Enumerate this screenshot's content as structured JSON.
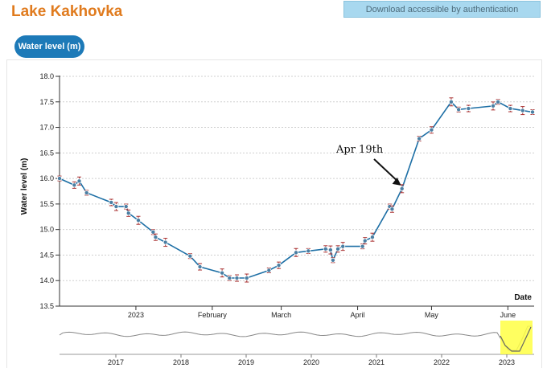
{
  "page": {
    "title": "Lake Kakhovka",
    "download_label": "Download accessible by authentication",
    "tab_label": "Water level (m)"
  },
  "colors": {
    "title": "#e07b1e",
    "line": "#1d6fa5",
    "point": "#4b7fa3",
    "error_bar": "#a33",
    "brush": "#ffff44"
  },
  "chart_data": {
    "type": "line",
    "ylabel": "Water level (m)",
    "xlabel": "Date",
    "ylim": [
      13.5,
      18.0
    ],
    "yticks": [
      13.5,
      14.0,
      14.5,
      15.0,
      15.5,
      16.0,
      16.5,
      17.0,
      17.5,
      18.0
    ],
    "xticks": [
      "2023",
      "February",
      "March",
      "April",
      "May",
      "June"
    ],
    "grid": "horizontal dashed",
    "annotation": {
      "text": "Apr 19th",
      "x": "2023-04-19",
      "y": 15.8
    },
    "series": [
      {
        "values": [
          [
            "2022-12-01",
            16.0
          ],
          [
            "2022-12-07",
            15.87
          ],
          [
            "2022-12-09",
            15.95
          ],
          [
            "2022-12-12",
            15.72
          ],
          [
            "2022-12-22",
            15.53
          ],
          [
            "2022-12-24",
            15.45
          ],
          [
            "2022-12-28",
            15.45
          ],
          [
            "2022-12-29",
            15.32
          ],
          [
            "2023-01-02",
            15.18
          ],
          [
            "2023-01-08",
            14.95
          ],
          [
            "2023-01-09",
            14.85
          ],
          [
            "2023-01-13",
            14.75
          ],
          [
            "2023-01-23",
            14.48
          ],
          [
            "2023-01-27",
            14.27
          ],
          [
            "2023-02-05",
            14.15
          ],
          [
            "2023-02-08",
            14.05
          ],
          [
            "2023-02-11",
            14.05
          ],
          [
            "2023-02-15",
            14.05
          ],
          [
            "2023-02-24",
            14.2
          ],
          [
            "2023-02-28",
            14.3
          ],
          [
            "2023-03-07",
            14.55
          ],
          [
            "2023-03-12",
            14.58
          ],
          [
            "2023-03-19",
            14.62
          ],
          [
            "2023-03-21",
            14.6
          ],
          [
            "2023-03-22",
            14.4
          ],
          [
            "2023-03-24",
            14.62
          ],
          [
            "2023-03-26",
            14.67
          ],
          [
            "2023-04-03",
            14.67
          ],
          [
            "2023-04-04",
            14.78
          ],
          [
            "2023-04-07",
            14.85
          ],
          [
            "2023-04-14",
            15.45
          ],
          [
            "2023-04-15",
            15.4
          ],
          [
            "2023-04-19",
            15.8
          ],
          [
            "2023-04-26",
            16.78
          ],
          [
            "2023-05-01",
            16.95
          ],
          [
            "2023-05-09",
            17.5
          ],
          [
            "2023-05-12",
            17.35
          ],
          [
            "2023-05-16",
            17.37
          ],
          [
            "2023-05-26",
            17.42
          ],
          [
            "2023-05-28",
            17.5
          ],
          [
            "2023-06-02",
            17.37
          ],
          [
            "2023-06-07",
            17.33
          ],
          [
            "2023-06-11",
            17.3
          ]
        ]
      }
    ],
    "navigator": {
      "ticks": [
        "2017",
        "2018",
        "2019",
        "2020",
        "2021",
        "2022",
        "2023"
      ],
      "selected_range": [
        "2022-12-01",
        "2023-06-11"
      ]
    }
  }
}
